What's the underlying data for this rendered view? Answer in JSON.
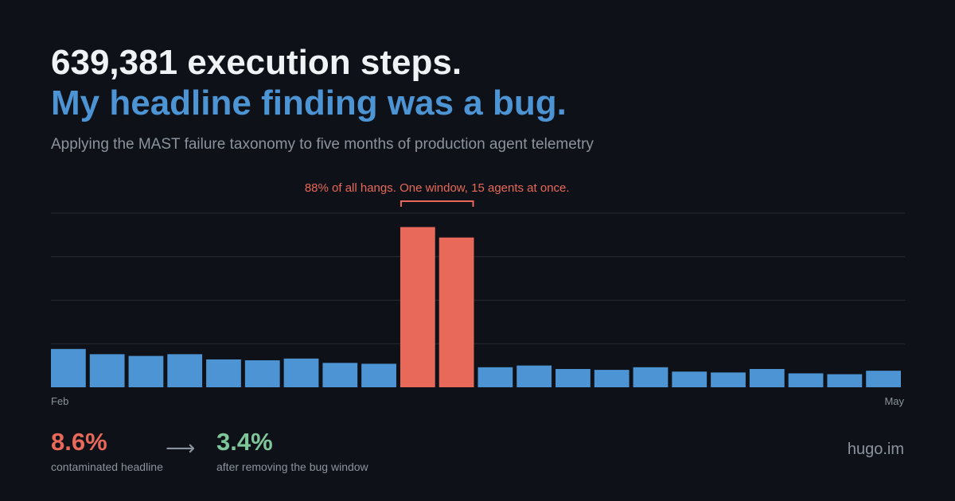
{
  "headline": {
    "line1": "639,381 execution steps.",
    "line2": "My headline finding was a bug.",
    "subtitle": "Applying the MAST failure taxonomy to five months of production agent telemetry"
  },
  "colors": {
    "background": "#0e1117",
    "accent_blue": "#4d94d4",
    "highlight_red": "#e8695a",
    "positive_green": "#7fc79a",
    "muted_text": "#8b949e",
    "gridline": "#262b33"
  },
  "chart_data": {
    "type": "bar",
    "annotation": "88% of all hangs. One window, 15 agents at once.",
    "x_start_label": "Feb",
    "x_end_label": "May",
    "values": [
      22,
      19,
      18,
      19,
      16,
      15.5,
      16.5,
      14,
      13.5,
      92,
      86,
      11.5,
      12.5,
      10.5,
      10,
      11.5,
      9,
      8.5,
      10.5,
      8,
      7.5,
      9.5
    ],
    "highlighted_indices": [
      9,
      10
    ],
    "ylim": [
      0,
      100
    ],
    "grid": true
  },
  "stats": {
    "before_value": "8.6%",
    "before_label": "contaminated headline",
    "arrow": "⟶",
    "after_value": "3.4%",
    "after_label": "after removing the bug window"
  },
  "brand": "hugo.im"
}
